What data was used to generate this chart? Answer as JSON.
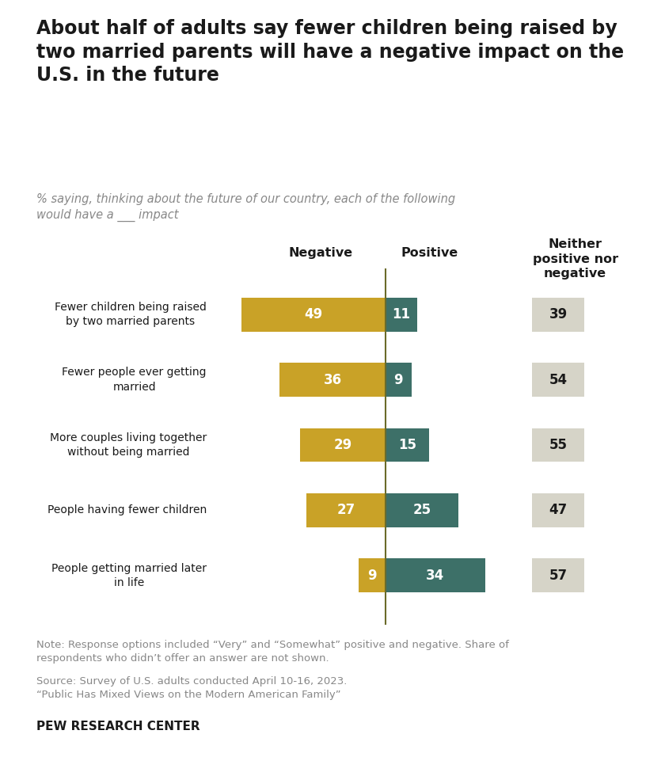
{
  "title": "About half of adults say fewer children being raised by\ntwo married parents will have a negative impact on the\nU.S. in the future",
  "subtitle": "% saying, thinking about the future of our country, each of the following\nwould have a ___ impact",
  "categories": [
    "Fewer children being raised\nby two married parents",
    "Fewer people ever getting\nmarried",
    "More couples living together\nwithout being married",
    "People having fewer children",
    "People getting married later\nin life"
  ],
  "negative": [
    49,
    36,
    29,
    27,
    9
  ],
  "positive": [
    11,
    9,
    15,
    25,
    34
  ],
  "neither": [
    39,
    54,
    55,
    47,
    57
  ],
  "negative_color": "#C9A227",
  "positive_color": "#3D7068",
  "neither_color": "#D6D4C8",
  "negative_label": "Negative",
  "positive_label": "Positive",
  "neither_label": "Neither\npositive nor\nnegative",
  "note_line1": "Note: Response options included “Very” and “Somewhat” positive and negative. Share of",
  "note_line2": "respondents who didn’t offer an answer are not shown.",
  "note_line3": "Source: Survey of U.S. adults conducted April 10-16, 2023.",
  "note_line4": "“Public Has Mixed Views on the Modern American Family”",
  "source_label": "PEW RESEARCH CENTER",
  "divider_color": "#6B6B2A",
  "background_color": "#FFFFFF",
  "text_color": "#1a1a1a",
  "subtitle_color": "#888888",
  "note_color": "#888888"
}
